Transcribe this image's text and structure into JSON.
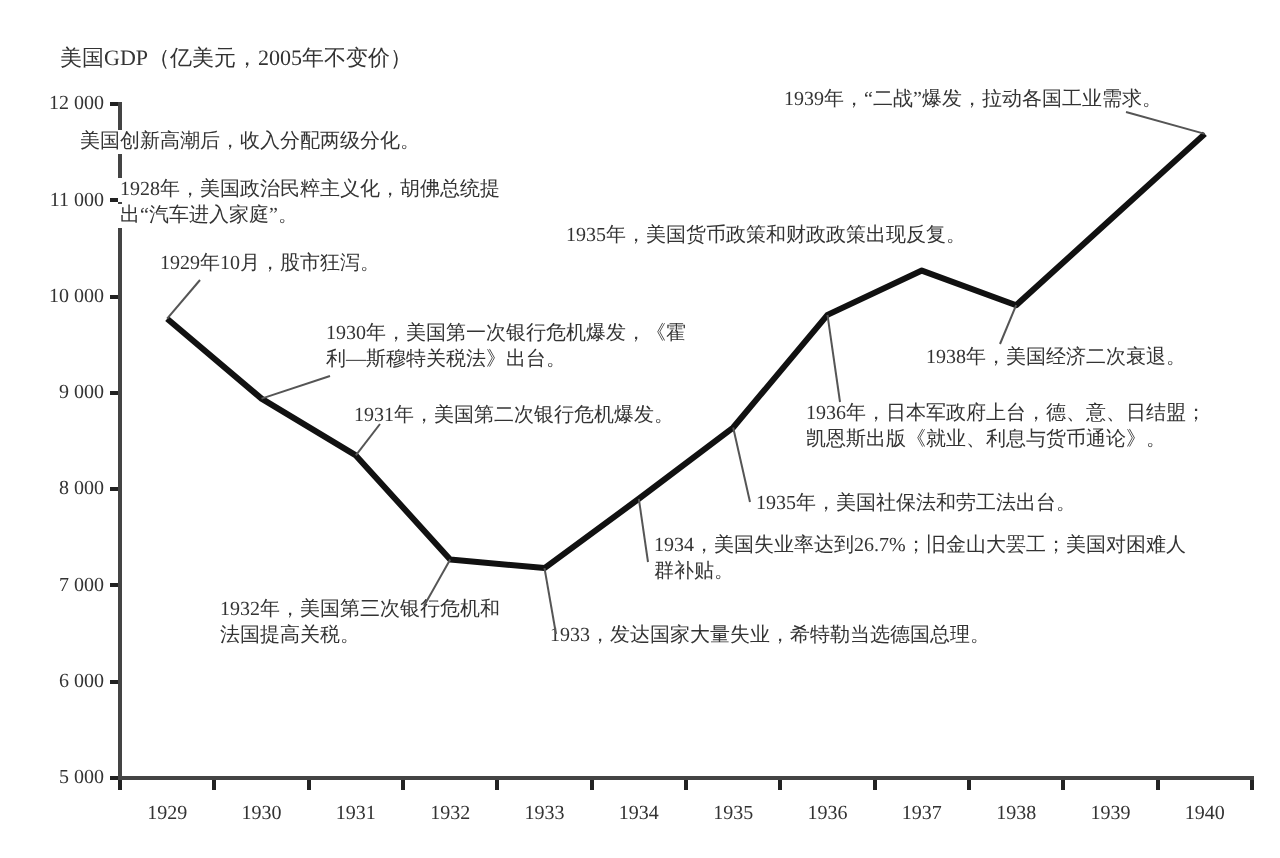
{
  "chart_data": {
    "type": "line",
    "ylabel": "美国GDP（亿美元，2005年不变价）",
    "categories": [
      "1929",
      "1930",
      "1931",
      "1932",
      "1933",
      "1934",
      "1935",
      "1936",
      "1937",
      "1938",
      "1939",
      "1940"
    ],
    "series": [
      {
        "color": "#111111",
        "values": [
          9770,
          8940,
          8350,
          7270,
          7180,
          7900,
          8640,
          9810,
          10270,
          9910,
          10800,
          11690
        ]
      }
    ],
    "ylim": [
      5000,
      12000
    ],
    "yticks": [
      {
        "value": 5000,
        "label": "5 000"
      },
      {
        "value": 6000,
        "label": "6 000"
      },
      {
        "value": 7000,
        "label": "7 000"
      },
      {
        "value": 8000,
        "label": "8 000"
      },
      {
        "value": 9000,
        "label": "9 000"
      },
      {
        "value": 10000,
        "label": "10 000"
      },
      {
        "value": 11000,
        "label": "11 000"
      },
      {
        "value": 12000,
        "label": "12 000"
      }
    ],
    "grid": false,
    "legend": false,
    "marker": "none",
    "line_style": "solid",
    "annotations": [
      "美国创新高潮后，收入分配两级分化。",
      "1928年，美国政治民粹主义化，胡佛总统提出“汽车进入家庭”。",
      {
        "text": "1929年10月，股市狂泻。",
        "x": "1929",
        "y": 9770
      },
      {
        "text": "1930年，美国第一次银行危机爆发，《霍利—斯穆特关税法》出台。",
        "x": "1930",
        "y": 8940
      },
      {
        "text": "1931年，美国第二次银行危机爆发。",
        "x": "1931",
        "y": 8350
      },
      {
        "text": "1932年，美国第三次银行危机和法国提高关税。",
        "x": "1932",
        "y": 7270
      },
      {
        "text": "1933，发达国家大量失业，希特勒当选德国总理。",
        "x": "1933",
        "y": 7180
      },
      {
        "text": "1934，美国失业率达到26.7%；旧金山大罢工；美国对困难人群补贴。",
        "x": "1934",
        "y": 7900
      },
      {
        "text": "1935年，美国社保法和劳工法出台。",
        "x": "1935",
        "y": 8640
      },
      {
        "text": "1936年，日本军政府上台，德、意、日结盟；凯恩斯出版《就业、利息与货币通论》。",
        "x": "1936",
        "y": 9810
      },
      "1935年，美国货币政策和财政政策出现反复。",
      {
        "text": "1938年，美国经济二次衰退。",
        "x": "1938",
        "y": 9910
      },
      {
        "text": "1939年，“二战”爆发，拉动各国工业需求。",
        "x": "1940",
        "y": 11690
      }
    ]
  }
}
